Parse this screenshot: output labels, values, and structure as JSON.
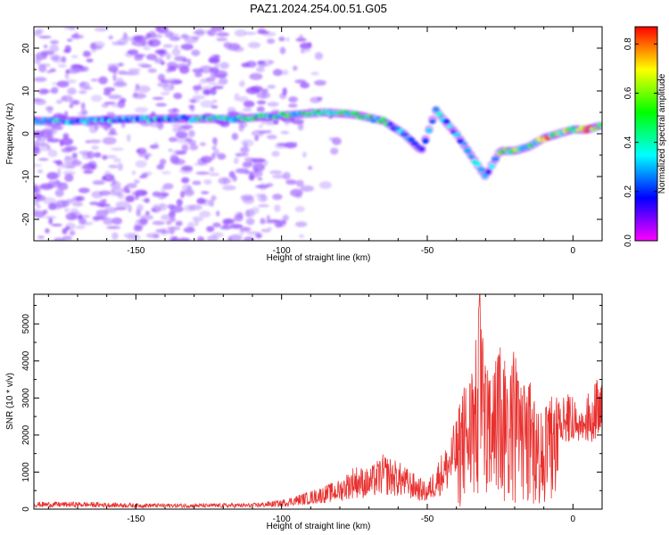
{
  "title": "PAZ1.2024.254.00.51.G05",
  "chart_data": [
    {
      "type": "heatmap",
      "xlabel": "Height of straight line (km)",
      "ylabel": "Frequency (Hz)",
      "xlim": [
        -185,
        10
      ],
      "ylim": [
        -25,
        25
      ],
      "xticks": [
        -150,
        -100,
        -50,
        0
      ],
      "yticks": [
        -20,
        -10,
        0,
        10,
        20
      ],
      "colorbar": {
        "label": "Normalized spectral amplitude",
        "range": [
          0,
          0.87
        ],
        "ticks": [
          0.0,
          0.2,
          0.4,
          0.6,
          0.8
        ],
        "colormap": [
          "#ff00ff",
          "#0000ff",
          "#00ffff",
          "#00ff00",
          "#ffff00",
          "#ff0000"
        ]
      },
      "ridge": {
        "x": [
          -185,
          -170,
          -150,
          -130,
          -115,
          -105,
          -95,
          -85,
          -75,
          -65,
          -58,
          -52,
          -47,
          -44,
          -40,
          -36,
          -33,
          -30,
          -25,
          -20,
          -15,
          -10,
          -5,
          0,
          5,
          10
        ],
        "y": [
          3,
          3,
          3.5,
          3.5,
          3.5,
          4,
          4.5,
          5,
          4.5,
          3,
          0,
          -4,
          5.5,
          3,
          0,
          -4,
          -7,
          -10,
          -4,
          -4,
          -3,
          -1,
          0,
          1,
          1,
          2
        ],
        "amplitude": [
          0.4,
          0.35,
          0.35,
          0.4,
          0.45,
          0.5,
          0.55,
          0.6,
          0.55,
          0.45,
          0.35,
          0.3,
          0.4,
          0.35,
          0.3,
          0.3,
          0.35,
          0.3,
          0.6,
          0.65,
          0.5,
          0.8,
          0.7,
          0.6,
          0.85,
          0.5
        ]
      }
    },
    {
      "type": "line",
      "xlabel": "Height of straight line (km)",
      "ylabel": "SNR (10 * v/v)",
      "xlim": [
        -185,
        10
      ],
      "ylim": [
        0,
        5800
      ],
      "xticks": [
        -150,
        -100,
        -50,
        0
      ],
      "yticks": [
        0,
        1000,
        2000,
        3000,
        4000,
        5000
      ],
      "color": "#e8312f",
      "envelope": {
        "x": [
          -185,
          -170,
          -150,
          -130,
          -110,
          -100,
          -90,
          -80,
          -75,
          -70,
          -65,
          -60,
          -55,
          -50,
          -46,
          -43,
          -40,
          -37,
          -34,
          -32,
          -30,
          -28,
          -25,
          -22,
          -20,
          -18,
          -15,
          -12,
          -10,
          -8,
          -5,
          -3,
          0,
          3,
          5,
          8,
          10
        ],
        "y": [
          200,
          200,
          160,
          150,
          160,
          250,
          500,
          800,
          1200,
          1100,
          1500,
          1300,
          1000,
          700,
          1400,
          1800,
          2500,
          3500,
          4000,
          5800,
          3800,
          3700,
          4800,
          3600,
          4700,
          3300,
          3600,
          2800,
          3100,
          3000,
          3200,
          3100,
          3200,
          2600,
          3100,
          3600,
          3400
        ]
      }
    }
  ]
}
